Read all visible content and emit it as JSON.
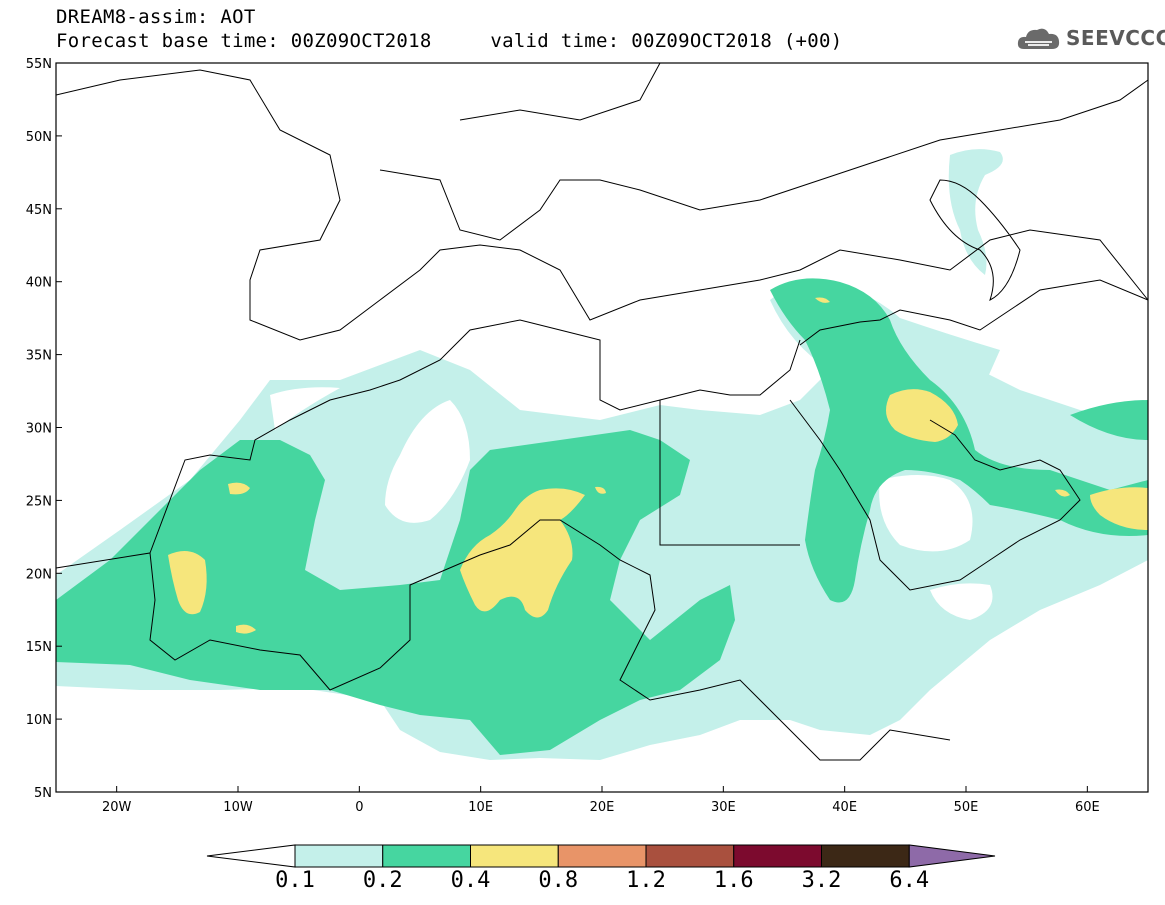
{
  "header": {
    "title_line1": "DREAM8-assim: AOT",
    "title_line2": "Forecast base time: 00Z09OCT2018     valid time: 00Z09OCT2018 (+00)"
  },
  "logo": {
    "icon": "cloud-icon",
    "text": "SEEVCCC"
  },
  "map": {
    "lat_labels": [
      "55N",
      "50N",
      "45N",
      "40N",
      "35N",
      "30N",
      "25N",
      "20N",
      "15N",
      "10N",
      "5N"
    ],
    "lon_labels": [
      "20W",
      "10W",
      "0",
      "10E",
      "20E",
      "30E",
      "40E",
      "50E",
      "60E"
    ],
    "extent": {
      "lon": [
        -25,
        65
      ],
      "lat": [
        5,
        55
      ]
    }
  },
  "colorbar": {
    "labels": [
      "0.1",
      "0.2",
      "0.4",
      "0.8",
      "1.2",
      "1.6",
      "3.2",
      "6.4"
    ],
    "colors": [
      "#ffffff",
      "#c4f0ea",
      "#46d6a0",
      "#f6e67c",
      "#e89468",
      "#a9503e",
      "#7c0a2e",
      "#3c2816",
      "#8e6aa8"
    ],
    "legend_colors": {
      "aot_0.1_0.2": "#c4f0ea",
      "aot_0.2_0.4": "#46d6a0",
      "aot_0.4_0.8": "#f6e67c"
    }
  }
}
